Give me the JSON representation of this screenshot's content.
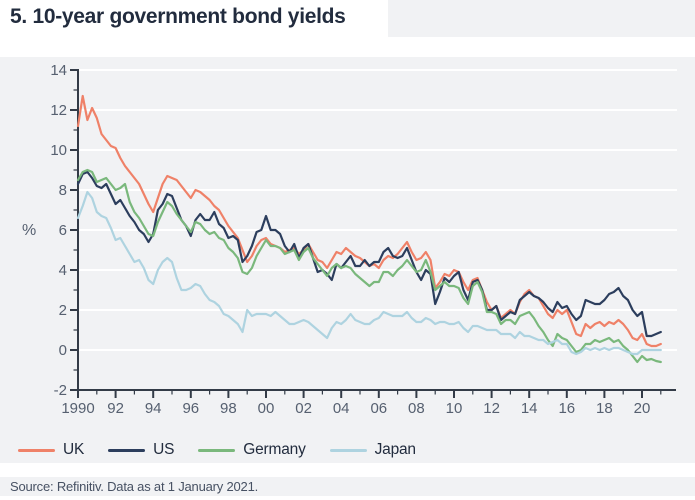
{
  "header": {
    "title": "5. 10-year government bond yields"
  },
  "source_note": "Source: Refinitiv. Data as at 1 January 2021.",
  "style": {
    "panel_bg": "#f1f2f4",
    "grid_color": "#ffffff",
    "axis_color": "#333b47",
    "tick_label_color": "#566070",
    "title_color": "#222c3e"
  },
  "chart_data": {
    "type": "line",
    "title": "5. 10-year government bond yields",
    "xlabel": "",
    "ylabel": "%",
    "ylim": [
      -2,
      14
    ],
    "xlim": [
      1990,
      2021.8
    ],
    "grid": true,
    "legend_position": "bottom-left",
    "y_ticks": [
      14,
      12,
      10,
      8,
      6,
      4,
      2,
      0,
      -2
    ],
    "y_gridlines": [
      14,
      12,
      10,
      8,
      6,
      4,
      2,
      0
    ],
    "x_tick_years": [
      1990,
      1992,
      1994,
      1996,
      1998,
      2000,
      2002,
      2004,
      2006,
      2008,
      2010,
      2012,
      2014,
      2016,
      2018,
      2020
    ],
    "x_tick_labels": [
      "1990",
      "92",
      "94",
      "96",
      "98",
      "00",
      "02",
      "04",
      "06",
      "08",
      "10",
      "12",
      "14",
      "16",
      "18",
      "20"
    ],
    "x": [
      1990,
      1990.25,
      1990.5,
      1990.75,
      1991,
      1991.25,
      1991.5,
      1991.75,
      1992,
      1992.25,
      1992.5,
      1992.75,
      1993,
      1993.25,
      1993.5,
      1993.75,
      1994,
      1994.25,
      1994.5,
      1994.75,
      1995,
      1995.25,
      1995.5,
      1995.75,
      1996,
      1996.25,
      1996.5,
      1996.75,
      1997,
      1997.25,
      1997.5,
      1997.75,
      1998,
      1998.25,
      1998.5,
      1998.75,
      1999,
      1999.25,
      1999.5,
      1999.75,
      2000,
      2000.25,
      2000.5,
      2000.75,
      2001,
      2001.25,
      2001.5,
      2001.75,
      2002,
      2002.25,
      2002.5,
      2002.75,
      2003,
      2003.25,
      2003.5,
      2003.75,
      2004,
      2004.25,
      2004.5,
      2004.75,
      2005,
      2005.25,
      2005.5,
      2005.75,
      2006,
      2006.25,
      2006.5,
      2006.75,
      2007,
      2007.25,
      2007.5,
      2007.75,
      2008,
      2008.25,
      2008.5,
      2008.75,
      2009,
      2009.25,
      2009.5,
      2009.75,
      2010,
      2010.25,
      2010.5,
      2010.75,
      2011,
      2011.25,
      2011.5,
      2011.75,
      2012,
      2012.25,
      2012.5,
      2012.75,
      2013,
      2013.25,
      2013.5,
      2013.75,
      2014,
      2014.25,
      2014.5,
      2014.75,
      2015,
      2015.25,
      2015.5,
      2015.75,
      2016,
      2016.25,
      2016.5,
      2016.75,
      2017,
      2017.25,
      2017.5,
      2017.75,
      2018,
      2018.25,
      2018.5,
      2018.75,
      2019,
      2019.25,
      2019.5,
      2019.75,
      2020,
      2020.25,
      2020.5,
      2020.75,
      2021
    ],
    "series": [
      {
        "name": "UK",
        "color": "#ef8168",
        "values": [
          11.2,
          12.7,
          11.5,
          12.1,
          11.6,
          10.8,
          10.5,
          10.2,
          10.1,
          9.6,
          9.2,
          8.9,
          8.6,
          8.3,
          7.8,
          7.3,
          6.9,
          7.6,
          8.3,
          8.7,
          8.6,
          8.5,
          8.2,
          7.9,
          7.6,
          8.0,
          7.9,
          7.7,
          7.5,
          7.2,
          7.0,
          6.6,
          6.2,
          5.9,
          5.6,
          5.0,
          4.4,
          4.7,
          5.2,
          5.5,
          5.6,
          5.3,
          5.2,
          5.1,
          4.9,
          5.0,
          5.1,
          4.8,
          5.0,
          5.3,
          4.9,
          4.5,
          4.4,
          4.1,
          4.5,
          4.9,
          4.8,
          5.1,
          4.9,
          4.7,
          4.6,
          4.4,
          4.2,
          4.3,
          4.1,
          4.5,
          4.7,
          4.6,
          4.8,
          5.1,
          5.4,
          4.9,
          4.5,
          4.6,
          4.9,
          4.5,
          3.1,
          3.4,
          3.8,
          3.7,
          4.0,
          3.9,
          3.4,
          3.0,
          3.5,
          3.6,
          3.0,
          2.4,
          2.0,
          2.2,
          1.6,
          1.8,
          2.0,
          1.8,
          2.4,
          2.8,
          3.0,
          2.7,
          2.6,
          2.2,
          1.8,
          1.6,
          2.0,
          1.8,
          2.0,
          1.4,
          0.8,
          0.7,
          1.3,
          1.1,
          1.3,
          1.4,
          1.2,
          1.4,
          1.3,
          1.5,
          1.3,
          1.0,
          0.6,
          0.5,
          0.8,
          0.3,
          0.2,
          0.2,
          0.3
        ]
      },
      {
        "name": "US",
        "color": "#2c3e5d",
        "values": [
          8.3,
          8.8,
          8.9,
          8.6,
          8.2,
          8.1,
          8.3,
          7.8,
          7.3,
          7.5,
          7.1,
          6.7,
          6.4,
          6.0,
          5.8,
          5.4,
          5.8,
          7.0,
          7.3,
          7.8,
          7.7,
          7.1,
          6.5,
          6.2,
          5.7,
          6.5,
          6.8,
          6.5,
          6.5,
          6.9,
          6.3,
          6.1,
          5.6,
          5.7,
          5.5,
          4.4,
          4.7,
          5.2,
          5.9,
          6.0,
          6.7,
          6.0,
          6.0,
          5.8,
          5.2,
          4.9,
          5.3,
          4.6,
          5.1,
          5.3,
          4.6,
          3.9,
          4.0,
          3.8,
          3.5,
          4.3,
          4.1,
          4.4,
          4.7,
          4.2,
          4.2,
          4.5,
          4.2,
          4.4,
          4.4,
          4.9,
          5.1,
          4.7,
          4.6,
          4.7,
          5.1,
          4.5,
          3.9,
          3.5,
          4.0,
          3.8,
          2.3,
          2.9,
          3.6,
          3.4,
          3.7,
          3.9,
          3.0,
          2.5,
          3.4,
          3.5,
          3.0,
          2.0,
          2.0,
          2.2,
          1.5,
          1.7,
          1.9,
          1.8,
          2.5,
          2.7,
          2.9,
          2.7,
          2.6,
          2.4,
          2.1,
          1.9,
          2.4,
          2.1,
          2.2,
          1.8,
          1.5,
          1.7,
          2.5,
          2.4,
          2.3,
          2.3,
          2.5,
          2.8,
          2.9,
          3.1,
          2.7,
          2.5,
          2.0,
          1.7,
          1.9,
          0.7,
          0.7,
          0.8,
          0.9
        ]
      },
      {
        "name": "Germany",
        "color": "#7ab87c",
        "values": [
          8.5,
          8.9,
          9.0,
          8.9,
          8.4,
          8.5,
          8.6,
          8.3,
          8.0,
          8.1,
          8.3,
          7.4,
          6.9,
          6.6,
          6.2,
          5.8,
          5.7,
          6.4,
          6.9,
          7.4,
          7.2,
          6.8,
          6.5,
          6.2,
          5.9,
          6.4,
          6.3,
          6.0,
          5.8,
          5.9,
          5.6,
          5.5,
          5.1,
          4.9,
          4.6,
          3.9,
          3.8,
          4.1,
          4.7,
          5.1,
          5.5,
          5.2,
          5.2,
          5.1,
          4.8,
          4.9,
          5.0,
          4.5,
          4.9,
          5.1,
          4.6,
          4.3,
          4.0,
          3.7,
          4.1,
          4.3,
          4.1,
          4.2,
          4.1,
          3.8,
          3.6,
          3.4,
          3.2,
          3.4,
          3.4,
          3.9,
          3.9,
          3.7,
          4.0,
          4.2,
          4.5,
          4.2,
          3.9,
          4.0,
          4.5,
          3.9,
          3.0,
          3.2,
          3.4,
          3.2,
          3.2,
          3.1,
          2.6,
          2.3,
          3.2,
          3.4,
          2.9,
          1.9,
          1.9,
          1.8,
          1.3,
          1.5,
          1.5,
          1.3,
          1.7,
          1.8,
          1.9,
          1.6,
          1.2,
          0.9,
          0.5,
          0.2,
          0.8,
          0.6,
          0.5,
          0.2,
          -0.1,
          0.0,
          0.3,
          0.3,
          0.5,
          0.4,
          0.5,
          0.6,
          0.4,
          0.5,
          0.2,
          0.0,
          -0.3,
          -0.6,
          -0.3,
          -0.5,
          -0.45,
          -0.55,
          -0.6
        ]
      },
      {
        "name": "Japan",
        "color": "#aed3e0",
        "values": [
          6.6,
          7.2,
          7.9,
          7.6,
          6.9,
          6.7,
          6.6,
          6.1,
          5.5,
          5.6,
          5.2,
          4.8,
          4.4,
          4.5,
          4.1,
          3.5,
          3.3,
          4.0,
          4.4,
          4.6,
          4.4,
          3.6,
          3.0,
          3.0,
          3.1,
          3.3,
          3.2,
          2.8,
          2.5,
          2.4,
          2.2,
          1.8,
          1.7,
          1.5,
          1.3,
          0.9,
          2.0,
          1.7,
          1.8,
          1.8,
          1.8,
          1.7,
          1.9,
          1.7,
          1.5,
          1.3,
          1.3,
          1.4,
          1.5,
          1.4,
          1.2,
          1.0,
          0.8,
          0.6,
          1.1,
          1.4,
          1.3,
          1.5,
          1.8,
          1.5,
          1.4,
          1.3,
          1.3,
          1.5,
          1.6,
          1.9,
          1.8,
          1.7,
          1.7,
          1.7,
          1.9,
          1.6,
          1.4,
          1.4,
          1.6,
          1.5,
          1.3,
          1.4,
          1.4,
          1.3,
          1.3,
          1.4,
          1.1,
          0.9,
          1.2,
          1.2,
          1.1,
          1.0,
          1.0,
          1.0,
          0.8,
          0.8,
          0.8,
          0.6,
          0.9,
          0.7,
          0.7,
          0.6,
          0.5,
          0.5,
          0.3,
          0.4,
          0.5,
          0.3,
          0.3,
          -0.1,
          -0.2,
          -0.1,
          0.1,
          0.0,
          0.1,
          0.0,
          0.1,
          0.0,
          0.1,
          0.1,
          0.0,
          -0.1,
          -0.2,
          -0.2,
          0.0,
          0.0,
          0.0,
          0.0,
          0.0
        ]
      }
    ]
  }
}
